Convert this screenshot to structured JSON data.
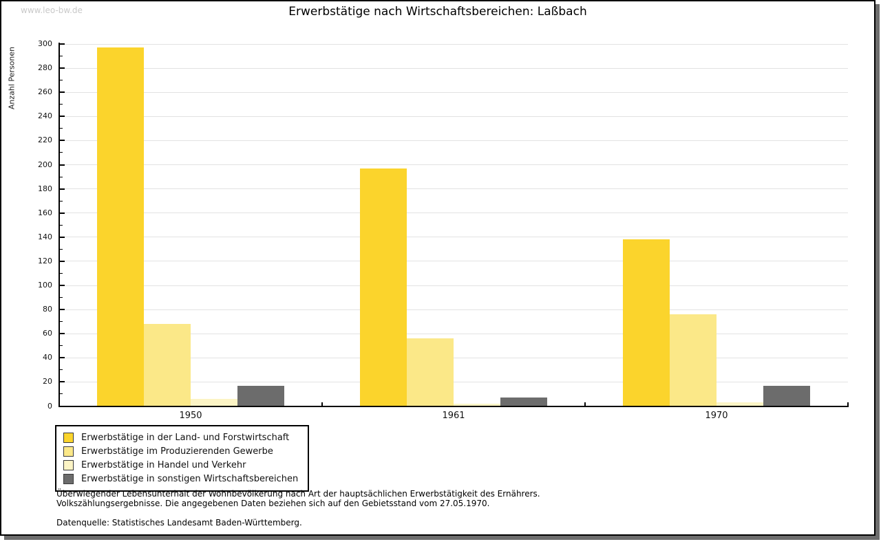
{
  "watermark": "www.leo-bw.de",
  "title": "Erwerbstätige nach Wirtschaftsbereichen: Laßbach",
  "chart_data": {
    "type": "bar",
    "title": "Erwerbstätige nach Wirtschaftsbereichen: Laßbach",
    "xlabel": "",
    "ylabel": "Anzahl Personen",
    "categories": [
      "1950",
      "1961",
      "1970"
    ],
    "series": [
      {
        "name": "Erwerbstätige in der Land- und Forstwirtschaft",
        "color": "#fbd42c",
        "values": [
          297,
          197,
          138
        ]
      },
      {
        "name": "Erwerbstätige im Produzierenden Gewerbe",
        "color": "#fbe888",
        "values": [
          68,
          56,
          76
        ]
      },
      {
        "name": "Erwerbstätige in Handel und Verkehr",
        "color": "#fcf4c5",
        "values": [
          6,
          2,
          3
        ]
      },
      {
        "name": "Erwerbstätige in sonstigen Wirtschaftsbereichen",
        "color": "#6c6c6c",
        "values": [
          17,
          7,
          17
        ]
      }
    ],
    "ylim": [
      0,
      300
    ],
    "ytick_step": 20,
    "yminor_step": 10,
    "grid": true,
    "legend_position": "bottom-left"
  },
  "footer": {
    "line1": "Überwiegender Lebensunterhalt der Wohnbevölkerung nach Art der hauptsächlichen Erwerbstätigkeit des Ernährers.",
    "line2": "Volkszählungsergebnisse. Die angegebenen Daten beziehen sich auf den Gebietsstand vom 27.05.1970.",
    "source": "Datenquelle: Statistisches Landesamt Baden-Württemberg."
  }
}
